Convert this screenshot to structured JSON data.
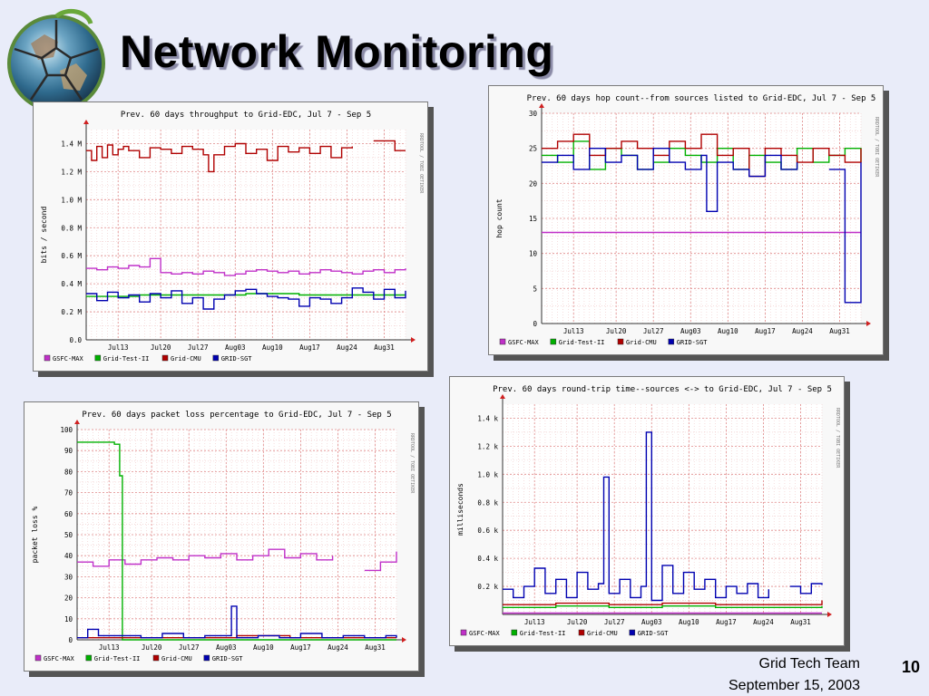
{
  "slide": {
    "title": "Network Monitoring",
    "footer_team": "Grid Tech Team",
    "footer_date": "September 15, 2003",
    "page_number": "10"
  },
  "colors": {
    "GSFC-MAX": "#c030c8",
    "Grid-Test-II": "#00b000",
    "Grid-CMU": "#b00000",
    "GRID-SGT": "#0000b0"
  },
  "chart_data": [
    {
      "id": "throughput",
      "type": "line",
      "title": "Prev. 60 days throughput to Grid-EDC, Jul  7 - Sep  5",
      "ylabel": "bits / second",
      "side_label": "RRDTOOL / TOBI OETIKER",
      "ylim": [
        0,
        1.5
      ],
      "yticks": [
        0,
        0.2,
        0.4,
        0.6,
        0.8,
        1.0,
        1.2,
        1.4
      ],
      "ytick_labels": [
        "0.0",
        "0.2 M",
        "0.4 M",
        "0.6 M",
        "0.8 M",
        "1.0 M",
        "1.2 M",
        "1.4 M"
      ],
      "x_range": [
        0,
        60
      ],
      "xtick_pos": [
        6,
        14,
        21,
        28,
        35,
        42,
        49,
        56
      ],
      "xtick_labels": [
        "Jul13",
        "Jul20",
        "Jul27",
        "Aug03",
        "Aug10",
        "Aug17",
        "Aug24",
        "Aug31"
      ],
      "legend": [
        "GSFC-MAX",
        "Grid-Test-II",
        "Grid-CMU",
        "GRID-SGT"
      ],
      "series": [
        {
          "name": "GSFC-MAX",
          "x": [
            0,
            2,
            4,
            6,
            8,
            10,
            12,
            14,
            16,
            18,
            20,
            22,
            24,
            26,
            28,
            30,
            32,
            34,
            36,
            38,
            40,
            42,
            44,
            46,
            48,
            50,
            52,
            54,
            56,
            58,
            60
          ],
          "values": [
            0.51,
            0.5,
            0.52,
            0.51,
            0.53,
            0.52,
            0.58,
            0.48,
            0.47,
            0.48,
            0.47,
            0.49,
            0.48,
            0.46,
            0.47,
            0.49,
            0.5,
            0.49,
            0.48,
            0.49,
            0.47,
            0.48,
            0.5,
            0.49,
            0.48,
            0.47,
            0.49,
            0.5,
            0.48,
            0.5,
            0.51
          ]
        },
        {
          "name": "Grid-Test-II",
          "x": [
            0,
            10,
            20,
            30,
            40,
            50,
            60
          ],
          "values": [
            0.31,
            0.32,
            0.32,
            0.33,
            0.32,
            0.32,
            0.32
          ]
        },
        {
          "name": "Grid-CMU",
          "x": [
            0,
            1,
            2,
            3,
            4,
            5,
            6,
            7,
            8,
            10,
            12,
            14,
            16,
            18,
            20,
            22,
            23,
            24,
            26,
            28,
            30,
            32,
            34,
            36,
            38,
            40,
            42,
            44,
            46,
            48,
            50,
            52,
            54,
            56,
            58,
            60
          ],
          "values": [
            1.35,
            1.28,
            1.38,
            1.3,
            1.39,
            1.32,
            1.36,
            1.38,
            1.35,
            1.3,
            1.37,
            1.36,
            1.33,
            1.38,
            1.36,
            1.32,
            1.2,
            1.32,
            1.38,
            1.4,
            1.33,
            1.36,
            1.28,
            1.38,
            1.34,
            1.37,
            1.33,
            1.38,
            1.3,
            1.37,
            1.38,
            null,
            1.42,
            1.42,
            1.35,
            1.35
          ]
        },
        {
          "name": "GRID-SGT",
          "x": [
            0,
            2,
            4,
            6,
            8,
            10,
            12,
            14,
            16,
            18,
            20,
            22,
            24,
            26,
            28,
            30,
            32,
            34,
            36,
            38,
            40,
            42,
            44,
            46,
            48,
            50,
            52,
            54,
            56,
            58,
            60
          ],
          "values": [
            0.33,
            0.28,
            0.34,
            0.3,
            0.32,
            0.27,
            0.33,
            0.3,
            0.35,
            0.26,
            0.3,
            0.22,
            0.29,
            0.32,
            0.35,
            0.36,
            0.33,
            0.31,
            0.3,
            0.29,
            0.24,
            0.3,
            0.29,
            0.26,
            0.3,
            0.37,
            0.34,
            0.29,
            0.36,
            0.3,
            0.35
          ]
        }
      ]
    },
    {
      "id": "hopcount",
      "type": "line",
      "title": "Prev. 60 days hop count--from sources listed  to Grid-EDC, Jul  7 - Sep  5",
      "ylabel": "hop count",
      "side_label": "RRDTOOL / TOBI OETIKER",
      "ylim": [
        0,
        30
      ],
      "yticks": [
        0,
        5,
        10,
        15,
        20,
        25,
        30
      ],
      "ytick_labels": [
        "0",
        "5",
        "10",
        "15",
        "20",
        "25",
        "30"
      ],
      "x_range": [
        0,
        60
      ],
      "xtick_pos": [
        6,
        14,
        21,
        28,
        35,
        42,
        49,
        56
      ],
      "xtick_labels": [
        "Jul13",
        "Jul20",
        "Jul27",
        "Aug03",
        "Aug10",
        "Aug17",
        "Aug24",
        "Aug31"
      ],
      "legend": [
        "GSFC-MAX",
        "Grid-Test-II",
        "Grid-CMU",
        "GRID-SGT"
      ],
      "series": [
        {
          "name": "GSFC-MAX",
          "x": [
            0,
            10,
            20,
            30,
            40,
            50,
            60
          ],
          "values": [
            13,
            13,
            13,
            13,
            13,
            13,
            13
          ]
        },
        {
          "name": "Grid-Test-II",
          "x": [
            0,
            3,
            6,
            9,
            12,
            15,
            18,
            21,
            24,
            27,
            30,
            33,
            36,
            39,
            42,
            45,
            48,
            51,
            54,
            57,
            60
          ],
          "values": [
            24,
            23,
            26,
            22,
            25,
            24,
            22,
            23,
            25,
            24,
            23,
            25,
            22,
            24,
            23,
            22,
            25,
            23,
            24,
            25,
            23
          ]
        },
        {
          "name": "Grid-CMU",
          "x": [
            0,
            3,
            6,
            9,
            12,
            15,
            18,
            21,
            24,
            27,
            30,
            33,
            36,
            39,
            42,
            45,
            48,
            51,
            54,
            57,
            60
          ],
          "values": [
            25,
            26,
            27,
            24,
            25,
            26,
            25,
            24,
            26,
            25,
            27,
            24,
            25,
            21,
            25,
            24,
            23,
            25,
            24,
            23,
            25
          ]
        },
        {
          "name": "GRID-SGT",
          "x": [
            0,
            3,
            6,
            9,
            12,
            15,
            18,
            21,
            24,
            27,
            30,
            31,
            33,
            36,
            39,
            42,
            45,
            48,
            51,
            54,
            57,
            60
          ],
          "values": [
            23,
            24,
            22,
            25,
            23,
            24,
            22,
            25,
            23,
            22,
            24,
            16,
            23,
            22,
            21,
            24,
            22,
            23,
            null,
            22,
            3,
            23
          ]
        }
      ]
    },
    {
      "id": "packetloss",
      "type": "line",
      "title": "Prev. 60 days packet loss percentage to Grid-EDC, Jul  7 - Sep  5",
      "ylabel": "packet loss %",
      "side_label": "RRDTOOL / TOBI OETIKER",
      "ylim": [
        0,
        100
      ],
      "yticks": [
        0,
        10,
        20,
        30,
        40,
        50,
        60,
        70,
        80,
        90,
        100
      ],
      "ytick_labels": [
        "0",
        "10",
        "20",
        "30",
        "40",
        "50",
        "60",
        "70",
        "80",
        "90",
        "100"
      ],
      "x_range": [
        0,
        60
      ],
      "xtick_pos": [
        6,
        14,
        21,
        28,
        35,
        42,
        49,
        56
      ],
      "xtick_labels": [
        "Jul13",
        "Jul20",
        "Jul27",
        "Aug03",
        "Aug10",
        "Aug17",
        "Aug24",
        "Aug31"
      ],
      "legend": [
        "GSFC-MAX",
        "Grid-Test-II",
        "Grid-CMU",
        "GRID-SGT"
      ],
      "series": [
        {
          "name": "GSFC-MAX",
          "x": [
            0,
            3,
            6,
            9,
            12,
            15,
            18,
            21,
            24,
            27,
            30,
            33,
            36,
            39,
            42,
            45,
            48,
            51,
            54,
            57,
            60
          ],
          "values": [
            37,
            35,
            38,
            36,
            38,
            39,
            38,
            40,
            39,
            41,
            38,
            40,
            43,
            39,
            41,
            38,
            40,
            null,
            33,
            37,
            42
          ]
        },
        {
          "name": "Grid-Test-II",
          "x": [
            0,
            6,
            7,
            8,
            8.5,
            60
          ],
          "values": [
            94,
            94,
            93,
            78,
            0,
            0
          ]
        },
        {
          "name": "Grid-CMU",
          "x": [
            0,
            10,
            20,
            30,
            40,
            50,
            60
          ],
          "values": [
            1,
            1,
            1,
            2,
            1,
            1,
            1
          ]
        },
        {
          "name": "GRID-SGT",
          "x": [
            0,
            2,
            4,
            8,
            12,
            16,
            20,
            24,
            28,
            29,
            30,
            34,
            38,
            42,
            46,
            50,
            54,
            58,
            60
          ],
          "values": [
            1,
            5,
            2,
            2,
            1,
            3,
            1,
            2,
            2,
            16,
            1,
            2,
            1,
            3,
            1,
            2,
            1,
            2,
            1
          ]
        }
      ]
    },
    {
      "id": "roundtrip",
      "type": "line",
      "title": "Prev. 60 days round-trip time--sources <->  to Grid-EDC, Jul  7 - Sep  5",
      "ylabel": "milliseconds",
      "side_label": "RRDTOOL / TOBI OETIKER",
      "ylim": [
        0,
        1.5
      ],
      "yticks": [
        0,
        0.2,
        0.4,
        0.6,
        0.8,
        1.0,
        1.2,
        1.4
      ],
      "ytick_labels": [
        "",
        "0.2 k",
        "0.4 k",
        "0.6 k",
        "0.8 k",
        "1.0 k",
        "1.2 k",
        "1.4 k"
      ],
      "x_range": [
        0,
        60
      ],
      "xtick_pos": [
        6,
        14,
        21,
        28,
        35,
        42,
        49,
        56
      ],
      "xtick_labels": [
        "Jul13",
        "Jul20",
        "Jul27",
        "Aug03",
        "Aug10",
        "Aug17",
        "Aug24",
        "Aug31"
      ],
      "legend": [
        "GSFC-MAX",
        "Grid-Test-II",
        "Grid-CMU",
        "GRID-SGT"
      ],
      "series": [
        {
          "name": "GSFC-MAX",
          "x": [
            0,
            10,
            20,
            30,
            40,
            50,
            60
          ],
          "values": [
            0.01,
            0.01,
            0.01,
            0.01,
            0.01,
            0.01,
            0.01
          ]
        },
        {
          "name": "Grid-Test-II",
          "x": [
            0,
            10,
            20,
            30,
            40,
            50,
            60
          ],
          "values": [
            0.05,
            0.06,
            0.05,
            0.06,
            0.05,
            0.05,
            0.06
          ]
        },
        {
          "name": "Grid-CMU",
          "x": [
            0,
            10,
            20,
            30,
            40,
            50,
            60
          ],
          "values": [
            0.07,
            0.08,
            0.07,
            0.08,
            0.07,
            0.07,
            0.1
          ]
        },
        {
          "name": "GRID-SGT",
          "x": [
            0,
            2,
            4,
            6,
            8,
            10,
            12,
            14,
            16,
            18,
            19,
            20,
            22,
            24,
            26,
            27,
            28,
            30,
            32,
            34,
            36,
            38,
            40,
            42,
            44,
            46,
            48,
            50,
            52,
            54,
            56,
            58,
            60
          ],
          "values": [
            0.18,
            0.12,
            0.2,
            0.33,
            0.15,
            0.25,
            0.12,
            0.3,
            0.18,
            0.22,
            0.98,
            0.15,
            0.25,
            0.12,
            0.2,
            1.3,
            0.1,
            0.35,
            0.15,
            0.3,
            0.18,
            0.25,
            0.12,
            0.2,
            0.15,
            0.22,
            0.12,
            0.18,
            null,
            0.2,
            0.15,
            0.22,
            0.21
          ]
        }
      ]
    }
  ]
}
